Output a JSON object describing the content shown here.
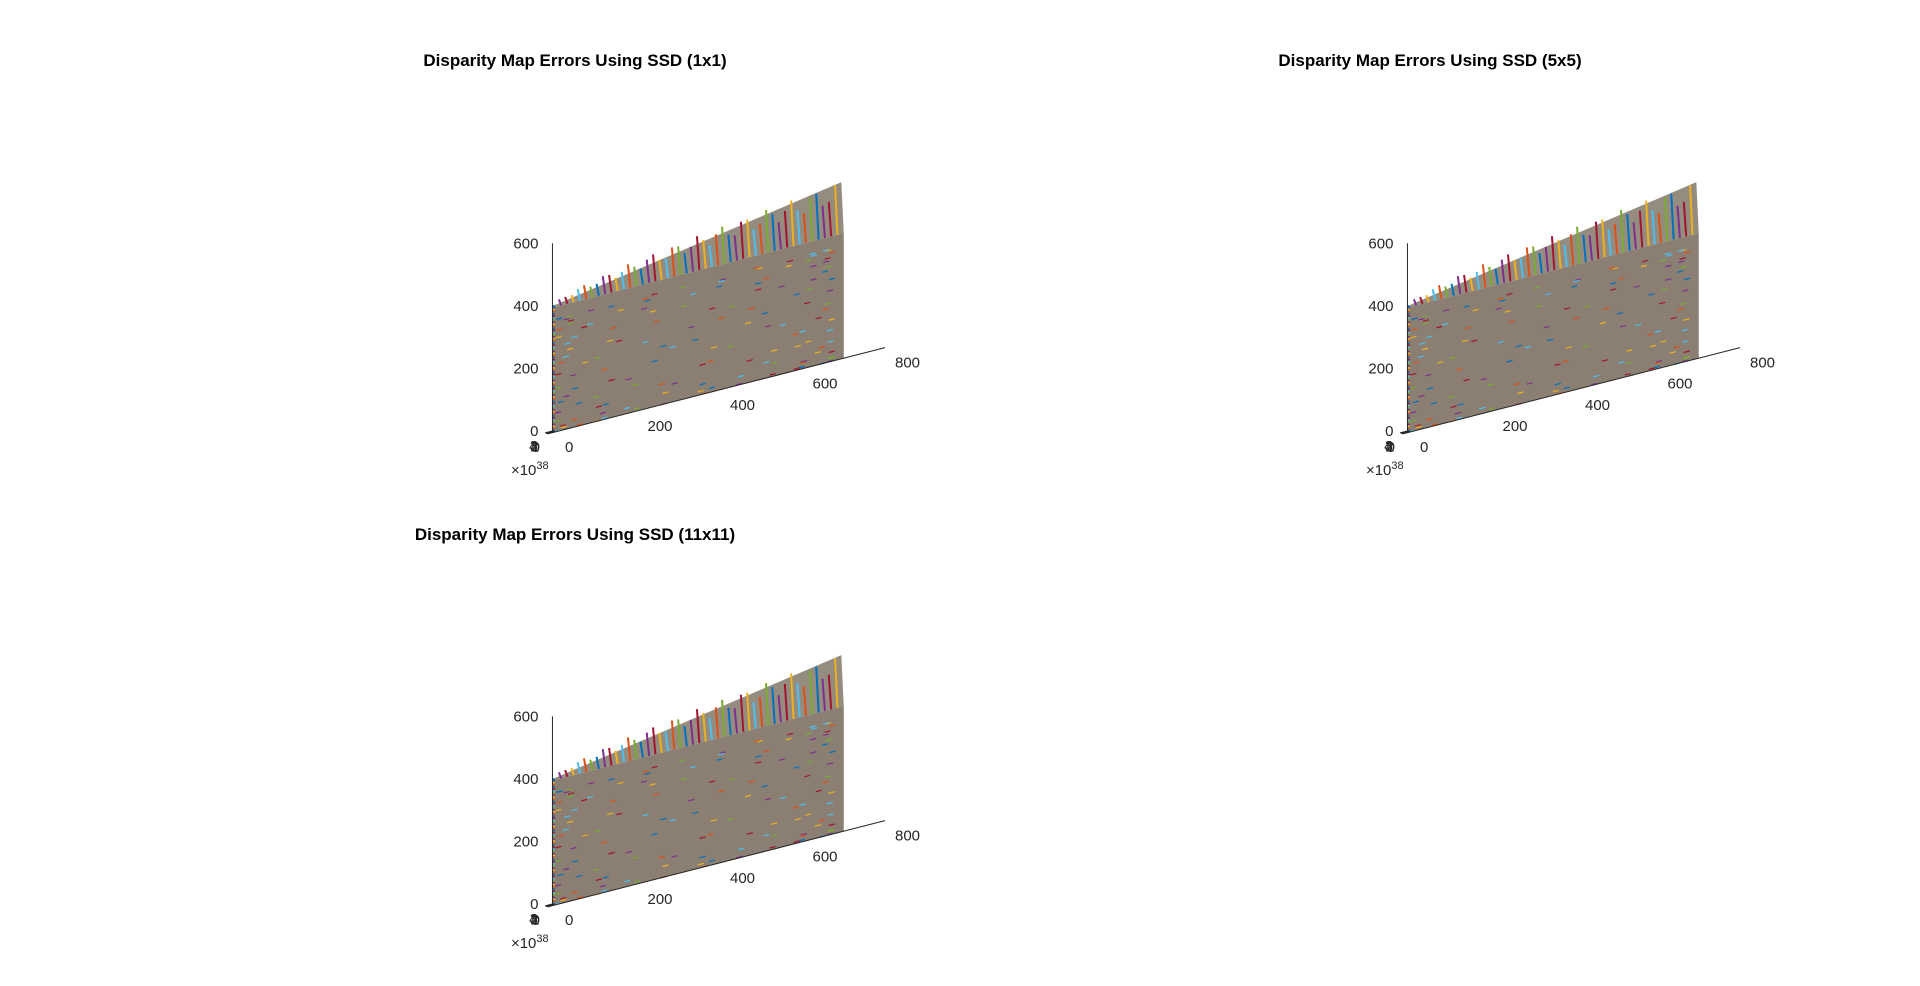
{
  "figure": {
    "background": "#ffffff",
    "axis_color": "#262626",
    "surface_color": "#8a7f72"
  },
  "chart_data": [
    {
      "type": "3d-line",
      "title": "Disparity Map Errors Using SSD (1x1)",
      "xlabel": "",
      "ylabel": "",
      "zlabel": "",
      "x_ticks": [
        "0",
        "200",
        "400",
        "600",
        "800"
      ],
      "y_ticks": [
        "0",
        "1",
        "2",
        "3",
        "4"
      ],
      "y_exponent": "38",
      "z_ticks": [
        "0",
        "200",
        "400",
        "600"
      ],
      "xlim": [
        0,
        800
      ],
      "ylim": [
        0,
        4e+38
      ],
      "zlim": [
        0,
        600
      ],
      "approx_extent": {
        "x_max": 700,
        "y_max": 3.8e+38,
        "z_front": 400,
        "z_back_max": 560
      },
      "series_colors": [
        "#0072bd",
        "#d95319",
        "#edb120",
        "#7e2f8e",
        "#77ac30",
        "#4dbeee",
        "#a2142f"
      ],
      "grid": false
    },
    {
      "type": "3d-line",
      "title": "Disparity Map Errors Using SSD (5x5)",
      "xlabel": "",
      "ylabel": "",
      "zlabel": "",
      "x_ticks": [
        "0",
        "200",
        "400",
        "600",
        "800"
      ],
      "y_ticks": [
        "0",
        "1",
        "2",
        "3",
        "4"
      ],
      "y_exponent": "38",
      "z_ticks": [
        "0",
        "200",
        "400",
        "600"
      ],
      "xlim": [
        0,
        800
      ],
      "ylim": [
        0,
        4e+38
      ],
      "zlim": [
        0,
        600
      ],
      "approx_extent": {
        "x_max": 700,
        "y_max": 3.8e+38,
        "z_front": 400,
        "z_back_max": 560
      },
      "series_colors": [
        "#0072bd",
        "#d95319",
        "#edb120",
        "#7e2f8e",
        "#77ac30",
        "#4dbeee",
        "#a2142f"
      ],
      "grid": false
    },
    {
      "type": "3d-line",
      "title": "Disparity Map Errors Using SSD (11x11)",
      "xlabel": "",
      "ylabel": "",
      "zlabel": "",
      "x_ticks": [
        "0",
        "200",
        "400",
        "600",
        "800"
      ],
      "y_ticks": [
        "0",
        "1",
        "2",
        "3",
        "4"
      ],
      "y_exponent": "38",
      "z_ticks": [
        "0",
        "200",
        "400",
        "600"
      ],
      "xlim": [
        0,
        800
      ],
      "ylim": [
        0,
        4e+38
      ],
      "zlim": [
        0,
        600
      ],
      "approx_extent": {
        "x_max": 700,
        "y_max": 3.8e+38,
        "z_front": 400,
        "z_back_max": 560
      },
      "series_colors": [
        "#0072bd",
        "#d95319",
        "#edb120",
        "#7e2f8e",
        "#77ac30",
        "#4dbeee",
        "#a2142f"
      ],
      "grid": false
    }
  ]
}
